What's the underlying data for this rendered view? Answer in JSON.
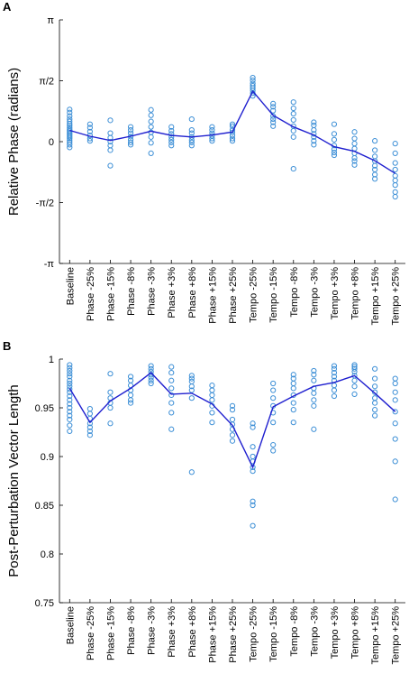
{
  "chart_data": [
    {
      "panel": "A",
      "type": "scatter",
      "title": "",
      "ylabel": "Relative Phase (radians)",
      "xlabel": "",
      "ylim": [
        -3.14159,
        3.14159
      ],
      "yticks": [
        {
          "value": 3.14159,
          "label": "π"
        },
        {
          "value": 1.5708,
          "label": "π/2"
        },
        {
          "value": 0,
          "label": "0"
        },
        {
          "value": -1.5708,
          "label": "-π/2"
        },
        {
          "value": -3.14159,
          "label": "-π"
        }
      ],
      "categories": [
        "Baseline",
        "Phase -25%",
        "Phase -15%",
        "Phase -8%",
        "Phase -3%",
        "Phase +3%",
        "Phase +8%",
        "Phase +15%",
        "Phase +25%",
        "Tempo -25%",
        "Tempo -15%",
        "Tempo -8%",
        "Tempo -3%",
        "Tempo +3%",
        "Tempo +8%",
        "Tempo +15%",
        "Tempo +25%"
      ],
      "mean": [
        0.29,
        0.14,
        0.03,
        0.14,
        0.27,
        0.16,
        0.12,
        0.17,
        0.25,
        1.3,
        0.68,
        0.38,
        0.17,
        -0.13,
        -0.25,
        -0.49,
        -0.82
      ],
      "points": [
        [
          0.83,
          0.75,
          0.66,
          0.58,
          0.52,
          0.46,
          0.41,
          0.36,
          0.32,
          0.28,
          0.24,
          0.2,
          0.16,
          0.12,
          0.08,
          0.03,
          -0.02,
          -0.08,
          -0.15
        ],
        [
          0.45,
          0.36,
          0.26,
          0.16,
          0.08,
          0.02
        ],
        [
          0.55,
          0.22,
          0.1,
          0.0,
          -0.1,
          -0.22,
          -0.62
        ],
        [
          0.38,
          0.3,
          0.22,
          0.13,
          0.05,
          -0.02,
          -0.08
        ],
        [
          0.82,
          0.68,
          0.52,
          0.38,
          0.24,
          0.12,
          -0.03,
          -0.3
        ],
        [
          0.38,
          0.28,
          0.2,
          0.12,
          0.05,
          -0.02,
          -0.1
        ],
        [
          0.58,
          0.3,
          0.22,
          0.12,
          0.04,
          -0.02,
          -0.1
        ],
        [
          0.38,
          0.3,
          0.22,
          0.15,
          0.08,
          0.02
        ],
        [
          0.45,
          0.4,
          0.3,
          0.24,
          0.16,
          0.08,
          0.02
        ],
        [
          1.65,
          1.58,
          1.5,
          1.44,
          1.38,
          1.32,
          1.25,
          1.18
        ],
        [
          0.98,
          0.9,
          0.8,
          0.66,
          0.58,
          0.5,
          0.4
        ],
        [
          1.02,
          0.86,
          0.72,
          0.56,
          0.4,
          0.28,
          0.12,
          -0.7
        ],
        [
          0.5,
          0.42,
          0.3,
          0.2,
          0.12,
          0.02,
          -0.08
        ],
        [
          0.45,
          0.2,
          0.05,
          -0.1,
          -0.2,
          -0.28,
          -0.35
        ],
        [
          0.25,
          0.08,
          -0.05,
          -0.18,
          -0.3,
          -0.42,
          -0.5,
          -0.6
        ],
        [
          0.02,
          -0.22,
          -0.38,
          -0.5,
          -0.62,
          -0.72,
          -0.85,
          -0.96
        ],
        [
          -0.05,
          -0.3,
          -0.55,
          -0.72,
          -0.88,
          -1.0,
          -1.12,
          -1.3,
          -1.42
        ]
      ]
    },
    {
      "panel": "B",
      "type": "scatter",
      "title": "",
      "ylabel": "Post-Perturbation Vector Length",
      "xlabel": "",
      "ylim": [
        0.75,
        1.0
      ],
      "yticks": [
        {
          "value": 1.0,
          "label": "1"
        },
        {
          "value": 0.95,
          "label": "0.95"
        },
        {
          "value": 0.9,
          "label": "0.9"
        },
        {
          "value": 0.85,
          "label": "0.85"
        },
        {
          "value": 0.8,
          "label": "0.8"
        },
        {
          "value": 0.75,
          "label": "0.75"
        }
      ],
      "categories": [
        "Baseline",
        "Phase -25%",
        "Phase -15%",
        "Phase -8%",
        "Phase -3%",
        "Phase +3%",
        "Phase +8%",
        "Phase +15%",
        "Phase +25%",
        "Tempo -25%",
        "Tempo -15%",
        "Tempo -8%",
        "Tempo -3%",
        "Tempo +3%",
        "Tempo +8%",
        "Tempo +15%",
        "Tempo +25%"
      ],
      "mean": [
        0.97,
        0.935,
        0.957,
        0.97,
        0.986,
        0.964,
        0.965,
        0.954,
        0.932,
        0.889,
        0.951,
        0.962,
        0.972,
        0.976,
        0.983,
        0.965,
        0.946
      ],
      "points": [
        [
          0.994,
          0.991,
          0.988,
          0.985,
          0.982,
          0.978,
          0.975,
          0.972,
          0.969,
          0.966,
          0.962,
          0.958,
          0.954,
          0.95,
          0.946,
          0.942,
          0.938,
          0.932,
          0.926
        ],
        [
          0.949,
          0.944,
          0.939,
          0.934,
          0.93,
          0.926,
          0.922
        ],
        [
          0.985,
          0.966,
          0.96,
          0.955,
          0.95,
          0.934
        ],
        [
          0.982,
          0.978,
          0.973,
          0.968,
          0.963,
          0.958,
          0.955
        ],
        [
          0.993,
          0.99,
          0.987,
          0.984,
          0.981,
          0.978,
          0.975
        ],
        [
          0.992,
          0.986,
          0.978,
          0.97,
          0.963,
          0.955,
          0.945,
          0.928
        ],
        [
          0.983,
          0.98,
          0.977,
          0.972,
          0.968,
          0.96,
          0.884
        ],
        [
          0.973,
          0.968,
          0.963,
          0.958,
          0.952,
          0.945,
          0.935
        ],
        [
          0.952,
          0.948,
          0.938,
          0.933,
          0.928,
          0.922,
          0.916
        ],
        [
          0.934,
          0.93,
          0.91,
          0.9,
          0.895,
          0.889,
          0.885,
          0.854,
          0.85,
          0.829
        ],
        [
          0.975,
          0.968,
          0.96,
          0.952,
          0.945,
          0.935,
          0.912,
          0.906
        ],
        [
          0.984,
          0.98,
          0.975,
          0.97,
          0.963,
          0.955,
          0.948,
          0.935
        ],
        [
          0.988,
          0.984,
          0.978,
          0.97,
          0.965,
          0.958,
          0.952,
          0.928
        ],
        [
          0.993,
          0.99,
          0.986,
          0.982,
          0.978,
          0.973,
          0.968,
          0.962
        ],
        [
          0.994,
          0.992,
          0.99,
          0.987,
          0.983,
          0.978,
          0.972,
          0.964
        ],
        [
          0.99,
          0.98,
          0.972,
          0.966,
          0.96,
          0.955,
          0.948,
          0.942
        ],
        [
          0.98,
          0.975,
          0.966,
          0.958,
          0.946,
          0.934,
          0.918,
          0.895,
          0.856
        ]
      ]
    }
  ]
}
